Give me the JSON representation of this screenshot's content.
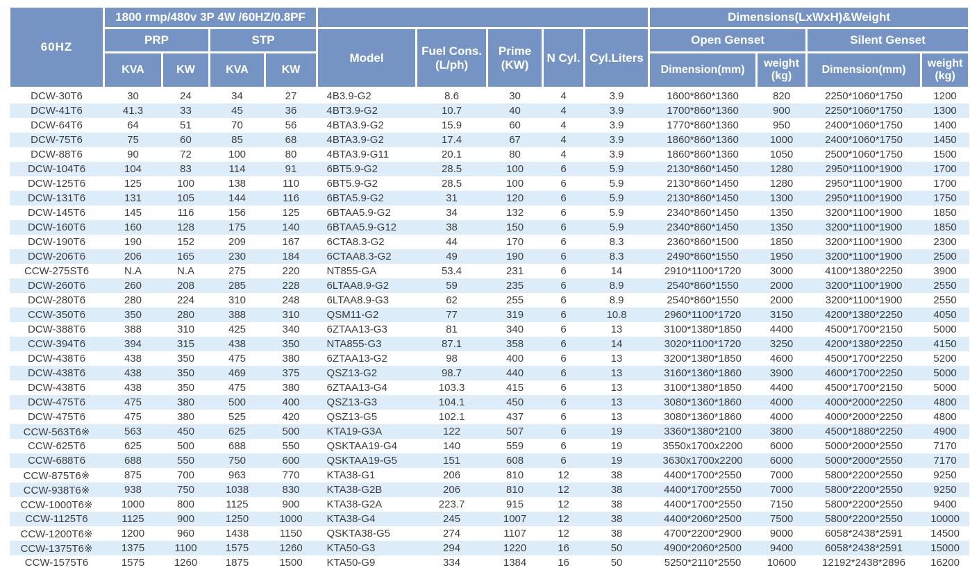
{
  "table": {
    "title_60hz": "60HZ",
    "power_spec_header": "1800 rmp/480v 3P 4W /60HZ/0.8PF",
    "dims_weight_header": "Dimensions(LxWxH)&Weight",
    "groups": {
      "prp": "PRP",
      "stp": "STP",
      "open_genset": "Open Genset",
      "silent_genset": "Silent Genset"
    },
    "cols": {
      "kva": "KVA",
      "kw": "KW",
      "model": "Model",
      "fuel_cons": "Fuel Cons.\n(L/ph)",
      "prime": "Prime\n(KW)",
      "n_cyl": "N Cyl.",
      "cyl_liters": "Cyl.Liters",
      "dimension": "Dimension(mm)",
      "weight": "weight\n(kg)"
    },
    "column_keys": [
      "genset-name",
      "prp-kva",
      "prp-kw",
      "stp-kva",
      "stp-kw",
      "engine-model",
      "fuel-cons",
      "prime-kw",
      "n-cyl",
      "cyl-liters",
      "open-dimension",
      "open-weight",
      "silent-dimension",
      "silent-weight"
    ],
    "rows": [
      [
        "DCW-30T6",
        "30",
        "24",
        "34",
        "27",
        "4B3.9-G2",
        "8.6",
        "30",
        "4",
        "3.9",
        "1600*860*1360",
        "820",
        "2250*1060*1750",
        "1200"
      ],
      [
        "DCW-41T6",
        "41.3",
        "33",
        "45",
        "36",
        "4BT3.9-G2",
        "10.7",
        "40",
        "4",
        "3.9",
        "1700*860*1360",
        "900",
        "2250*1060*1750",
        "1300"
      ],
      [
        "DCW-64T6",
        "64",
        "51",
        "70",
        "56",
        "4BTA3.9-G2",
        "15.9",
        "60",
        "4",
        "3.9",
        "1770*860*1360",
        "950",
        "2400*1060*1750",
        "1400"
      ],
      [
        "DCW-75T6",
        "75",
        "60",
        "85",
        "68",
        "4BTA3.9-G2",
        "17.4",
        "67",
        "4",
        "3.9",
        "1860*860*1360",
        "1000",
        "2400*1060*1750",
        "1450"
      ],
      [
        "DCW-88T6",
        "90",
        "72",
        "100",
        "80",
        "4BTA3.9-G11",
        "20.1",
        "80",
        "4",
        "3.9",
        "1860*860*1360",
        "1050",
        "2500*1060*1750",
        "1500"
      ],
      [
        "DCW-104T6",
        "104",
        "83",
        "114",
        "91",
        "6BT5.9-G2",
        "28.5",
        "100",
        "6",
        "5.9",
        "2130*860*1450",
        "1280",
        "2950*1100*1900",
        "1700"
      ],
      [
        "DCW-125T6",
        "125",
        "100",
        "138",
        "110",
        "6BT5.9-G2",
        "28.5",
        "100",
        "6",
        "5.9",
        "2130*860*1450",
        "1280",
        "2950*1100*1900",
        "1700"
      ],
      [
        "DCW-131T6",
        "131",
        "105",
        "144",
        "116",
        "6BTA5.9-G2",
        "31",
        "120",
        "6",
        "5.9",
        "2130*860*1450",
        "1300",
        "2950*1100*1900",
        "1750"
      ],
      [
        "DCW-145T6",
        "145",
        "116",
        "156",
        "125",
        "6BTAA5.9-G2",
        "34",
        "132",
        "6",
        "5.9",
        "2340*860*1450",
        "1350",
        "3200*1100*1900",
        "1850"
      ],
      [
        "DCW-160T6",
        "160",
        "128",
        "175",
        "140",
        "6BTAA5.9-G12",
        "38",
        "150",
        "6",
        "5.9",
        "2340*860*1450",
        "1350",
        "3200*1100*1900",
        "1850"
      ],
      [
        "DCW-190T6",
        "190",
        "152",
        "209",
        "167",
        "6CTA8.3-G2",
        "44",
        "170",
        "6",
        "8.3",
        "2360*860*1500",
        "1850",
        "3200*1100*1900",
        "2300"
      ],
      [
        "DCW-206T6",
        "206",
        "165",
        "230",
        "184",
        "6CTAA8.3-G2",
        "49",
        "190",
        "6",
        "8.3",
        "2490*860*1550",
        "1950",
        "3200*1100*1900",
        "2500"
      ],
      [
        "CCW-275ST6",
        "N.A",
        "N.A",
        "275",
        "220",
        "NT855-GA",
        "53.4",
        "231",
        "6",
        "14",
        "2910*1100*1720",
        "3000",
        "4100*1380*2250",
        "3900"
      ],
      [
        "DCW-260T6",
        "260",
        "208",
        "285",
        "228",
        "6LTAA8.9-G2",
        "59",
        "235",
        "6",
        "8.9",
        "2540*860*1550",
        "2000",
        "3200*1100*1900",
        "2550"
      ],
      [
        "DCW-280T6",
        "280",
        "224",
        "310",
        "248",
        "6LTAA8.9-G3",
        "62",
        "255",
        "6",
        "8.9",
        "2540*860*1550",
        "2000",
        "3200*1100*1900",
        "2550"
      ],
      [
        "CCW-350T6",
        "350",
        "280",
        "388",
        "310",
        "QSM11-G2",
        "77",
        "319",
        "6",
        "10.8",
        "2960*1100*1720",
        "3150",
        "4200*1380*2250",
        "4050"
      ],
      [
        "DCW-388T6",
        "388",
        "310",
        "425",
        "340",
        "6ZTAA13-G3",
        "81",
        "340",
        "6",
        "13",
        "3100*1380*1850",
        "4400",
        "4500*1700*2150",
        "5000"
      ],
      [
        "CCW-394T6",
        "394",
        "315",
        "438",
        "350",
        "NTA855-G3",
        "87.1",
        "358",
        "6",
        "14",
        "3020*1100*1720",
        "3250",
        "4200*1380*2250",
        "4150"
      ],
      [
        "DCW-438T6",
        "438",
        "350",
        "475",
        "380",
        "6ZTAA13-G2",
        "98",
        "400",
        "6",
        "13",
        "3200*1380*1850",
        "4600",
        "4500*1700*2250",
        "5200"
      ],
      [
        "DCW-438T6",
        "438",
        "350",
        "469",
        "375",
        "QSZ13-G2",
        "98.7",
        "440",
        "6",
        "13",
        "3160*1360*1860",
        "3900",
        "4600*1700*2250",
        "5000"
      ],
      [
        "DCW-438T6",
        "438",
        "350",
        "475",
        "380",
        "6ZTAA13-G4",
        "103.3",
        "415",
        "6",
        "13",
        "3100*1380*1850",
        "4400",
        "4500*1700*2150",
        "5000"
      ],
      [
        "DCW-475T6",
        "475",
        "380",
        "500",
        "400",
        "QSZ13-G3",
        "104.1",
        "450",
        "6",
        "13",
        "3080*1360*1860",
        "4000",
        "4000*2000*2250",
        "4800"
      ],
      [
        "DCW-475T6",
        "475",
        "380",
        "525",
        "420",
        "QSZ13-G5",
        "102.1",
        "437",
        "6",
        "13",
        "3080*1360*1860",
        "4000",
        "4000*2000*2250",
        "4800"
      ],
      [
        "CCW-563T6※",
        "563",
        "450",
        "625",
        "500",
        "KTA19-G3A",
        "122",
        "507",
        "6",
        "19",
        "3360*1380*2100",
        "3800",
        "4500*1880*2250",
        "4900"
      ],
      [
        "CCW-625T6",
        "625",
        "500",
        "688",
        "550",
        "QSKTAA19-G4",
        "140",
        "559",
        "6",
        "19",
        "3550x1700x2200",
        "6000",
        "5000*2000*2550",
        "7170"
      ],
      [
        "CCW-688T6",
        "688",
        "550",
        "750",
        "600",
        "QSKTAA19-G5",
        "151",
        "608",
        "6",
        "19",
        "3630x1700x2200",
        "6000",
        "5000*2000*2550",
        "7170"
      ],
      [
        "CCW-875T6※",
        "875",
        "700",
        "963",
        "770",
        "KTA38-G1",
        "206",
        "810",
        "12",
        "38",
        "4400*1700*2550",
        "7000",
        "5800*2200*2550",
        "9250"
      ],
      [
        "CCW-938T6※",
        "938",
        "750",
        "1038",
        "830",
        "KTA38-G2B",
        "206",
        "810",
        "12",
        "38",
        "4400*1700*2550",
        "7000",
        "5800*2200*2550",
        "9250"
      ],
      [
        "CCW-1000T6※",
        "1000",
        "800",
        "1125",
        "900",
        "KTA38-G2A",
        "223.7",
        "915",
        "12",
        "38",
        "4400*1700*2550",
        "7150",
        "5800*2200*2550",
        "9400"
      ],
      [
        "CCW-1125T6",
        "1125",
        "900",
        "1250",
        "1000",
        "KTA38-G4",
        "245",
        "1007",
        "12",
        "38",
        "4400*2060*2500",
        "7500",
        "5800*2200*2550",
        "10000"
      ],
      [
        "CCW-1200T6※",
        "1200",
        "960",
        "1438",
        "1150",
        "QSKTA38-G5",
        "274",
        "1107",
        "12",
        "38",
        "4700*2200*2900",
        "9000",
        "6058*2438*2591",
        "14500"
      ],
      [
        "CCW-1375T6※",
        "1375",
        "1100",
        "1575",
        "1260",
        "KTA50-G3",
        "294",
        "1220",
        "16",
        "50",
        "4900*2060*2500",
        "9400",
        "6058*2438*2591",
        "15000"
      ],
      [
        "CCW-1575T6",
        "1575",
        "1260",
        "1875",
        "1500",
        "KTA50-G9",
        "334",
        "1384",
        "16",
        "50",
        "5250*2110*2550",
        "10600",
        "12192*2438*2896",
        "16200"
      ]
    ]
  },
  "colors": {
    "header_blue": "#7594c3",
    "stripe_blue": "#dcedf9",
    "row_white": "#ffffff",
    "header_text": "#ffffff",
    "body_text": "#3d3d3d"
  }
}
